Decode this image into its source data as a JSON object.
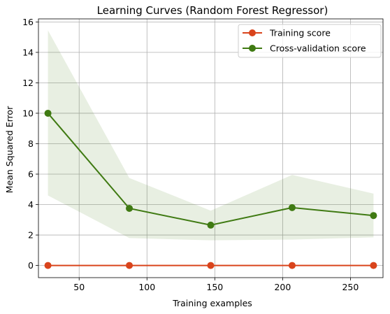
{
  "chart_data": {
    "type": "line",
    "title": "Learning Curves (Random Forest Regressor)",
    "xlabel": "Training examples",
    "ylabel": "Mean Squared Error",
    "xlim": [
      20,
      274
    ],
    "ylim": [
      -0.8,
      16.2
    ],
    "xticks": [
      50,
      100,
      150,
      200,
      250
    ],
    "yticks": [
      0,
      2,
      4,
      6,
      8,
      10,
      12,
      14,
      16
    ],
    "grid": true,
    "legend_position": "top-right",
    "x": [
      27,
      87,
      147,
      207,
      267
    ],
    "series": [
      {
        "name": "Training score",
        "color": "#d9441c",
        "values": [
          0.0,
          0.0,
          0.0,
          0.0,
          0.0
        ],
        "band_lower": [
          0.0,
          0.0,
          0.0,
          0.0,
          0.0
        ],
        "band_upper": [
          0.0,
          0.0,
          0.0,
          0.0,
          0.0
        ],
        "marker": "circle"
      },
      {
        "name": "Cross-validation score",
        "color": "#3f7a12",
        "values": [
          10.0,
          3.75,
          2.65,
          3.8,
          3.28
        ],
        "band_lower": [
          4.6,
          1.8,
          1.65,
          1.7,
          1.85
        ],
        "band_upper": [
          15.45,
          5.75,
          3.6,
          5.95,
          4.72
        ],
        "band_color": "#3f7a12",
        "marker": "circle"
      }
    ]
  }
}
